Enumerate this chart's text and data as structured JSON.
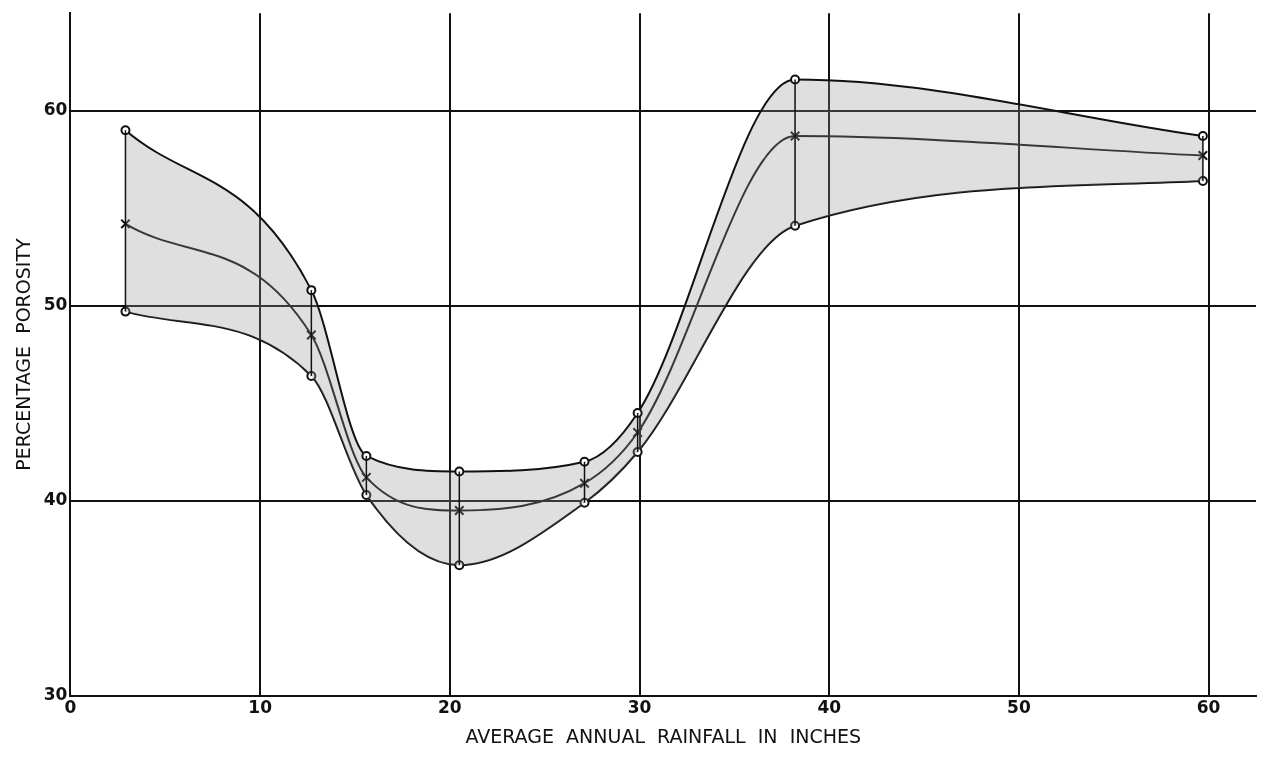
{
  "chart_data": {
    "type": "line",
    "xlabel": "AVERAGE  ANNUAL  RAINFALL  IN  INCHES",
    "ylabel": "PERCENTAGE  POROSITY",
    "xlim": [
      0,
      62.5
    ],
    "ylim": [
      30,
      65
    ],
    "xticks": [
      0,
      10,
      20,
      30,
      40,
      50,
      60
    ],
    "yticks": [
      30,
      40,
      50,
      60
    ],
    "grid": true,
    "legend": false,
    "line_style": "solid",
    "series": [
      {
        "color": "#111111",
        "marker": "circle",
        "x": [
          2.9,
          12.7,
          15.6,
          20.5,
          27.1,
          29.9,
          38.2,
          59.7
        ],
        "values": [
          59.0,
          50.8,
          42.3,
          41.5,
          42.0,
          44.5,
          61.6,
          58.7
        ]
      },
      {
        "color": "#111111",
        "marker": "cross",
        "x": [
          2.9,
          12.7,
          15.6,
          20.5,
          27.1,
          29.9,
          38.2,
          59.7
        ],
        "values": [
          54.2,
          48.5,
          41.2,
          39.5,
          40.9,
          43.5,
          58.7,
          57.7
        ],
        "lower": [
          49.7,
          46.4,
          40.3,
          36.7,
          39.9,
          42.5,
          54.1,
          56.4
        ],
        "upper": [
          59.0,
          50.8,
          42.3,
          41.5,
          42.0,
          44.5,
          61.6,
          58.7
        ],
        "errors": [
          [
            49.7,
            59.0
          ],
          [
            46.4,
            50.8
          ],
          [
            40.3,
            42.3
          ],
          [
            36.7,
            41.5
          ],
          [
            39.9,
            42.0
          ],
          [
            42.5,
            44.5
          ],
          [
            54.1,
            61.6
          ],
          [
            56.4,
            58.7
          ]
        ]
      },
      {
        "color": "#111111",
        "marker": "circle",
        "x": [
          2.9,
          12.7,
          15.6,
          20.5,
          27.1,
          29.9,
          38.2,
          59.7
        ],
        "values": [
          49.7,
          46.4,
          40.3,
          36.7,
          39.9,
          42.5,
          54.1,
          56.4
        ]
      }
    ]
  }
}
